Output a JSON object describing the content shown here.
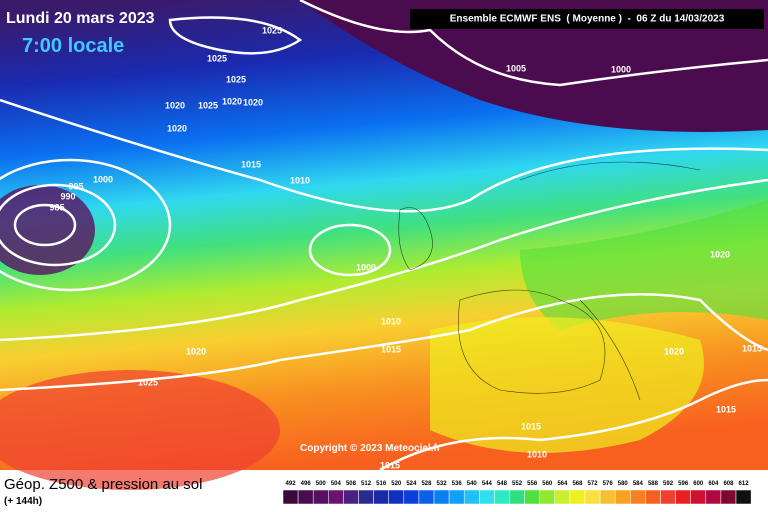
{
  "header": {
    "date": "Lundi 20 mars 2023",
    "time": "7:00 locale",
    "model": "Ensemble ECMWF ENS  ( Moyenne )  -  06 Z du 14/03/2023"
  },
  "isobars": [
    "1025",
    "1025",
    "1025",
    "1020",
    "1025",
    "1020",
    "1020",
    "1020",
    "1005",
    "1000",
    "1015",
    "1010",
    "1000",
    "995",
    "990",
    "985",
    "1000",
    "1020",
    "1010",
    "1015",
    "1020",
    "1020",
    "1015",
    "1025",
    "1015",
    "1015",
    "1010",
    "1015"
  ],
  "copyright": "Copyright © 2023 Meteociel.fr",
  "footer": {
    "title": "Géop. Z500 & pression au sol",
    "subtitle": "(+ 144h)"
  },
  "scale": [
    {
      "value": 492,
      "color": "#3a0a3a"
    },
    {
      "value": 496,
      "color": "#4a0c4e"
    },
    {
      "value": 500,
      "color": "#5a1060"
    },
    {
      "value": 504,
      "color": "#6a1470"
    },
    {
      "value": 508,
      "color": "#4a2080"
    },
    {
      "value": 512,
      "color": "#2a2a90"
    },
    {
      "value": 516,
      "color": "#1a2aa8"
    },
    {
      "value": 520,
      "color": "#1030c0"
    },
    {
      "value": 524,
      "color": "#0a40d8"
    },
    {
      "value": 528,
      "color": "#0a60e8"
    },
    {
      "value": 532,
      "color": "#0a80f0"
    },
    {
      "value": 536,
      "color": "#10a0f8"
    },
    {
      "value": 540,
      "color": "#20c0f8"
    },
    {
      "value": 544,
      "color": "#30e0f0"
    },
    {
      "value": 548,
      "color": "#30e8c0"
    },
    {
      "value": 552,
      "color": "#30e080"
    },
    {
      "value": 556,
      "color": "#50e040"
    },
    {
      "value": 560,
      "color": "#90e830"
    },
    {
      "value": 564,
      "color": "#c8f030"
    },
    {
      "value": 568,
      "color": "#f0f020"
    },
    {
      "value": 572,
      "color": "#f8e040"
    },
    {
      "value": 576,
      "color": "#f8c030"
    },
    {
      "value": 580,
      "color": "#f8a020"
    },
    {
      "value": 584,
      "color": "#f88020"
    },
    {
      "value": 588,
      "color": "#f86020"
    },
    {
      "value": 592,
      "color": "#f04030"
    },
    {
      "value": 596,
      "color": "#e82020"
    },
    {
      "value": 600,
      "color": "#d01030"
    },
    {
      "value": 604,
      "color": "#b00840"
    },
    {
      "value": 608,
      "color": "#800830"
    },
    {
      "value": 612,
      "color": "#101010"
    }
  ]
}
